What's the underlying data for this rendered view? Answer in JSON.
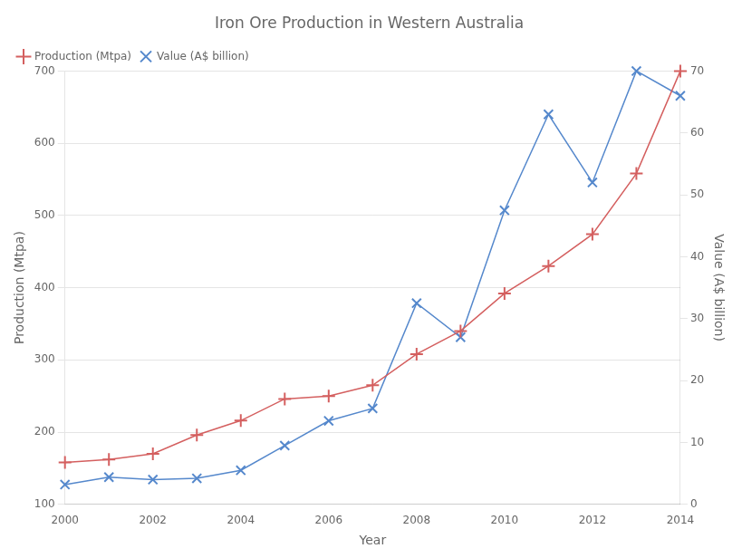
{
  "chart_data": {
    "type": "line",
    "title": "Iron Ore Production in Western Australia",
    "xlabel": "Year",
    "ylabel": "Production (Mtpa)",
    "y2label": "Value (A$ billion)",
    "x": [
      2000,
      2001,
      2002,
      2003,
      2004,
      2005,
      2006,
      2007,
      2008,
      2009,
      2010,
      2011,
      2012,
      2013,
      2014
    ],
    "series": [
      {
        "name": "Production (Mtpa)",
        "color": "#d45f5f",
        "marker": "plus",
        "values": [
          158,
          162,
          170,
          196,
          216,
          246,
          250,
          265,
          308,
          340,
          392,
          430,
          474,
          558,
          700
        ]
      },
      {
        "name": "Value (A$ billion)",
        "color": "#5588cc",
        "marker": "x",
        "axis": "y2",
        "values": [
          3.2,
          4.4,
          4.0,
          4.2,
          5.5,
          9.5,
          13.5,
          15.5,
          32.5,
          27.0,
          47.5,
          63.0,
          52.0,
          70.0,
          66.0
        ]
      }
    ],
    "xlim": [
      2000,
      2014
    ],
    "xticks": [
      2000,
      2002,
      2004,
      2006,
      2008,
      2010,
      2012,
      2014
    ],
    "ylim": [
      100,
      700
    ],
    "yticks": [
      100,
      200,
      300,
      400,
      500,
      600,
      700
    ],
    "y2lim": [
      0,
      70
    ],
    "y2ticks": [
      0,
      10,
      20,
      30,
      40,
      50,
      60,
      70
    ],
    "grid": true,
    "legend": "upper left"
  }
}
